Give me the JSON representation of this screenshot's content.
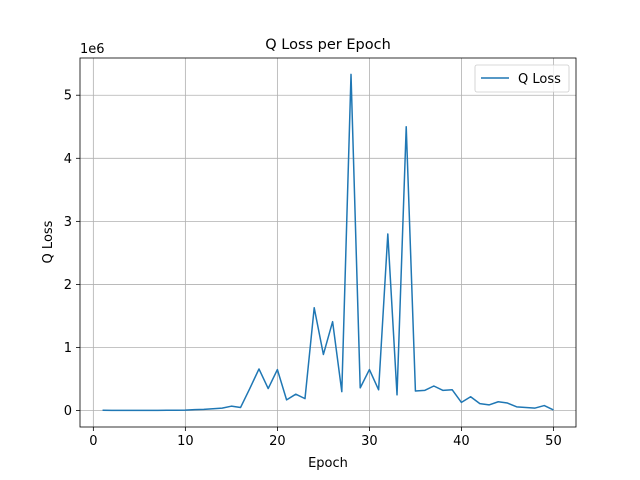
{
  "chart_data": {
    "type": "line",
    "title": "Q Loss per Epoch",
    "xlabel": "Epoch",
    "ylabel": "Q Loss",
    "y_scale_label": "1e6",
    "xlim": [
      -1.45,
      52.45
    ],
    "ylim": [
      -0.26,
      5.59
    ],
    "x_ticks": [
      0,
      10,
      20,
      30,
      40,
      50
    ],
    "y_ticks": [
      0,
      1,
      2,
      3,
      4,
      5
    ],
    "y_tick_labels": [
      "0",
      "1",
      "2",
      "3",
      "4",
      "5"
    ],
    "grid": true,
    "legend": "top-right",
    "series": [
      {
        "name": "Q Loss",
        "color": "#1f77b4",
        "x": [
          1,
          2,
          3,
          4,
          5,
          6,
          7,
          8,
          9,
          10,
          11,
          12,
          13,
          14,
          15,
          16,
          17,
          18,
          19,
          20,
          21,
          22,
          23,
          24,
          25,
          26,
          27,
          28,
          29,
          30,
          31,
          32,
          33,
          34,
          35,
          36,
          37,
          38,
          39,
          40,
          41,
          42,
          43,
          44,
          45,
          46,
          47,
          48,
          49,
          50
        ],
        "y": [
          0.005,
          0.004,
          0.004,
          0.004,
          0.004,
          0.004,
          0.004,
          0.005,
          0.005,
          0.008,
          0.015,
          0.02,
          0.03,
          0.04,
          0.07,
          0.05,
          0.35,
          0.66,
          0.35,
          0.65,
          0.17,
          0.26,
          0.19,
          1.63,
          0.89,
          1.41,
          0.3,
          5.33,
          0.36,
          0.65,
          0.33,
          2.8,
          0.25,
          4.5,
          0.31,
          0.32,
          0.39,
          0.32,
          0.33,
          0.13,
          0.22,
          0.11,
          0.09,
          0.14,
          0.12,
          0.06,
          0.05,
          0.04,
          0.08,
          0.01
        ]
      }
    ]
  }
}
